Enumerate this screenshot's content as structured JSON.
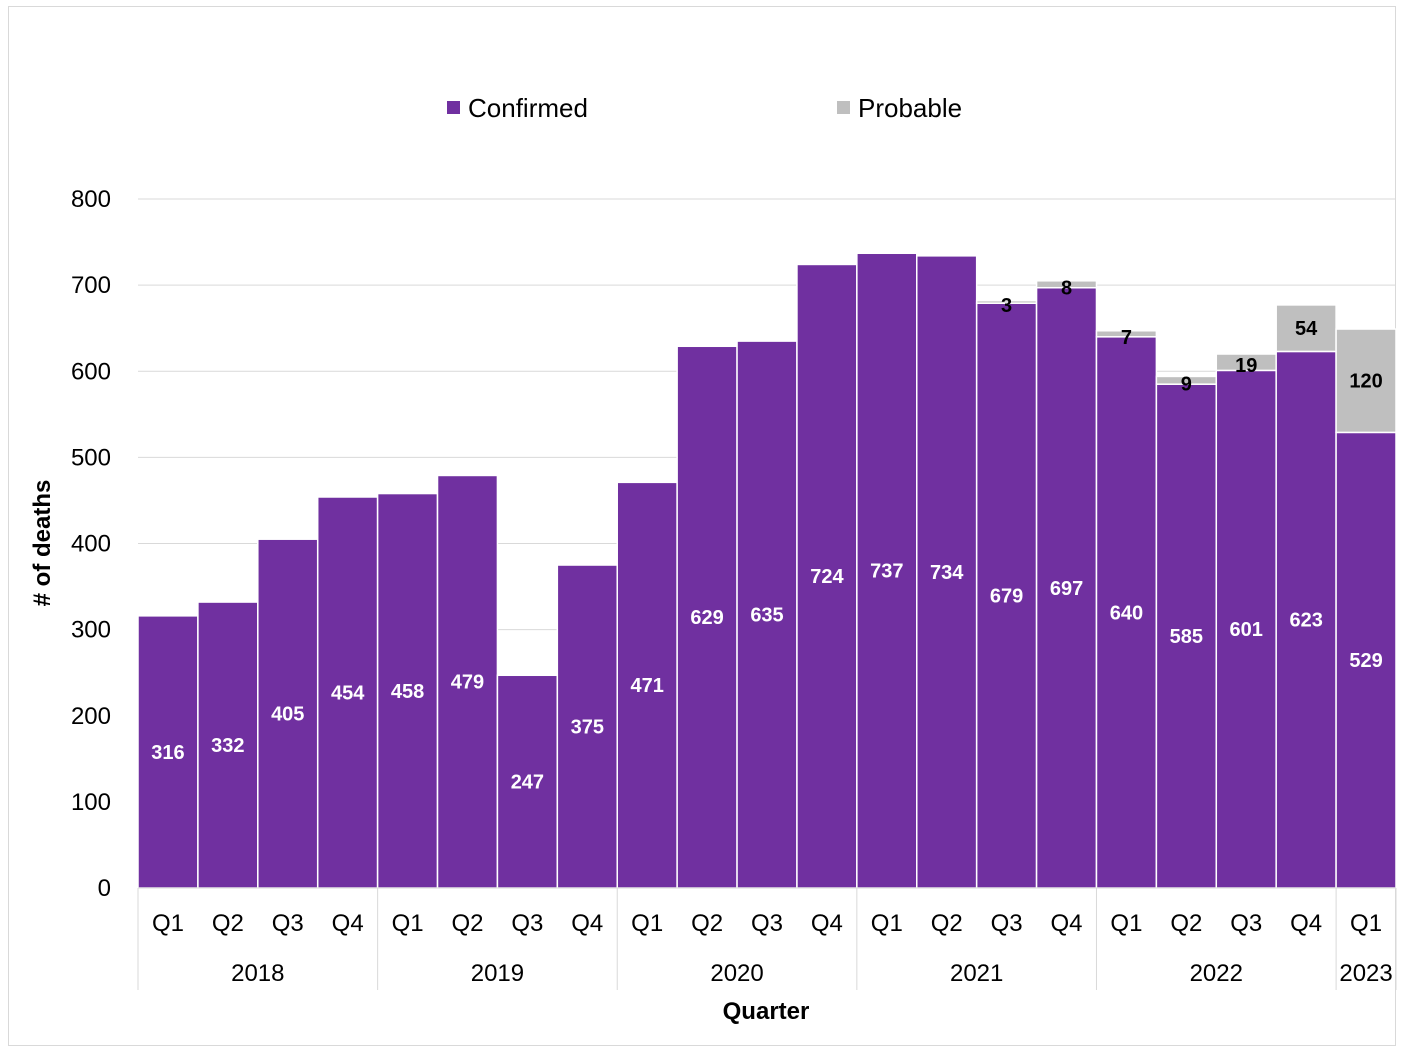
{
  "chart_data": {
    "type": "bar",
    "stacked": true,
    "title": "",
    "xlabel": "Quarter",
    "ylabel": "# of deaths",
    "ylim": [
      0,
      800
    ],
    "yticks": [
      0,
      100,
      200,
      300,
      400,
      500,
      600,
      700,
      800
    ],
    "grid": true,
    "legend_position": "top",
    "categories": [
      "Q1",
      "Q2",
      "Q3",
      "Q4",
      "Q1",
      "Q2",
      "Q3",
      "Q4",
      "Q1",
      "Q2",
      "Q3",
      "Q4",
      "Q1",
      "Q2",
      "Q3",
      "Q4",
      "Q1",
      "Q2",
      "Q3",
      "Q4",
      "Q1"
    ],
    "year_groups": [
      {
        "label": "2018",
        "count": 4
      },
      {
        "label": "2019",
        "count": 4
      },
      {
        "label": "2020",
        "count": 4
      },
      {
        "label": "2021",
        "count": 4
      },
      {
        "label": "2022",
        "count": 4
      },
      {
        "label": "2023",
        "count": 1
      }
    ],
    "series": [
      {
        "name": "Confirmed",
        "color": "#7030a0",
        "values": [
          316,
          332,
          405,
          454,
          458,
          479,
          247,
          375,
          471,
          629,
          635,
          724,
          737,
          734,
          679,
          697,
          640,
          585,
          601,
          623,
          529
        ]
      },
      {
        "name": "Probable",
        "color": "#bfbfbf",
        "values": [
          null,
          null,
          null,
          null,
          null,
          null,
          null,
          null,
          null,
          null,
          null,
          null,
          null,
          null,
          3,
          8,
          7,
          9,
          19,
          54,
          120
        ]
      }
    ]
  }
}
